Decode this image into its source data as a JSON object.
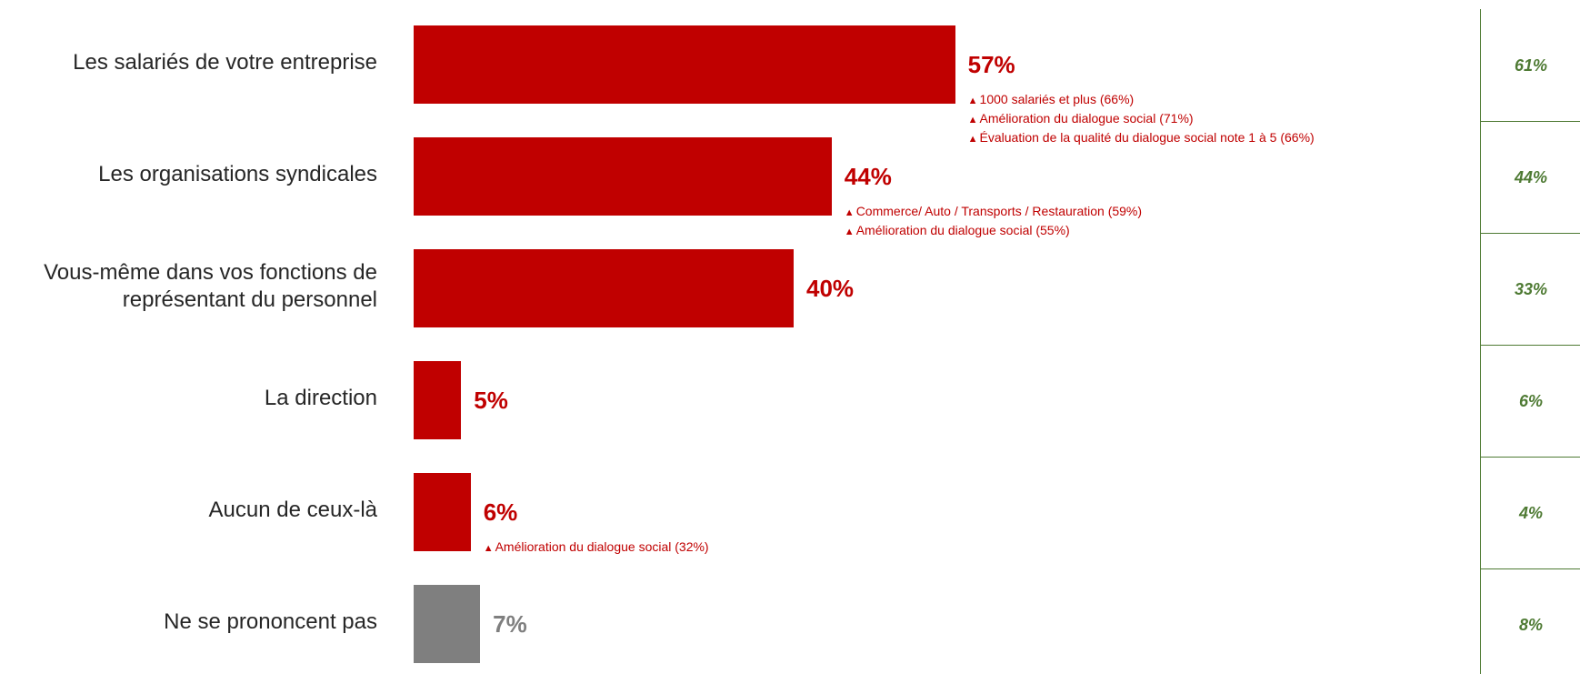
{
  "chart_data": {
    "type": "bar",
    "orientation": "horizontal",
    "xlim": [
      0,
      100
    ],
    "categories": [
      "Les salariés de votre entreprise",
      "Les organisations syndicales",
      "Vous-même dans vos fonctions de représentant du personnel",
      "La direction",
      "Aucun de ceux-là",
      "Ne se prononcent pas"
    ],
    "values": [
      57,
      44,
      40,
      5,
      6,
      7
    ],
    "value_labels": [
      "57%",
      "44%",
      "40%",
      "5%",
      "6%",
      "7%"
    ],
    "bar_colors": [
      "#c00000",
      "#c00000",
      "#c00000",
      "#c00000",
      "#c00000",
      "#7f7f7f"
    ],
    "annotations": [
      [
        "1000 salariés et plus (66%)",
        "Amélioration du dialogue social (71%)",
        "Évaluation de la qualité du dialogue social note 1 à 5 (66%)"
      ],
      [
        "Commerce/ Auto / Transports / Restauration (59%)",
        "Amélioration du dialogue social (55%)"
      ],
      [],
      [],
      [
        "Amélioration du dialogue social (32%)"
      ],
      []
    ],
    "comparison_values": [
      "61%",
      "44%",
      "33%",
      "6%",
      "4%",
      "8%"
    ]
  },
  "colors": {
    "accent": "#c00000",
    "neutral": "#7f7f7f",
    "comparison": "#4e7a33",
    "label_text": "#262626"
  },
  "icons": {
    "annotation_marker": "▲"
  }
}
